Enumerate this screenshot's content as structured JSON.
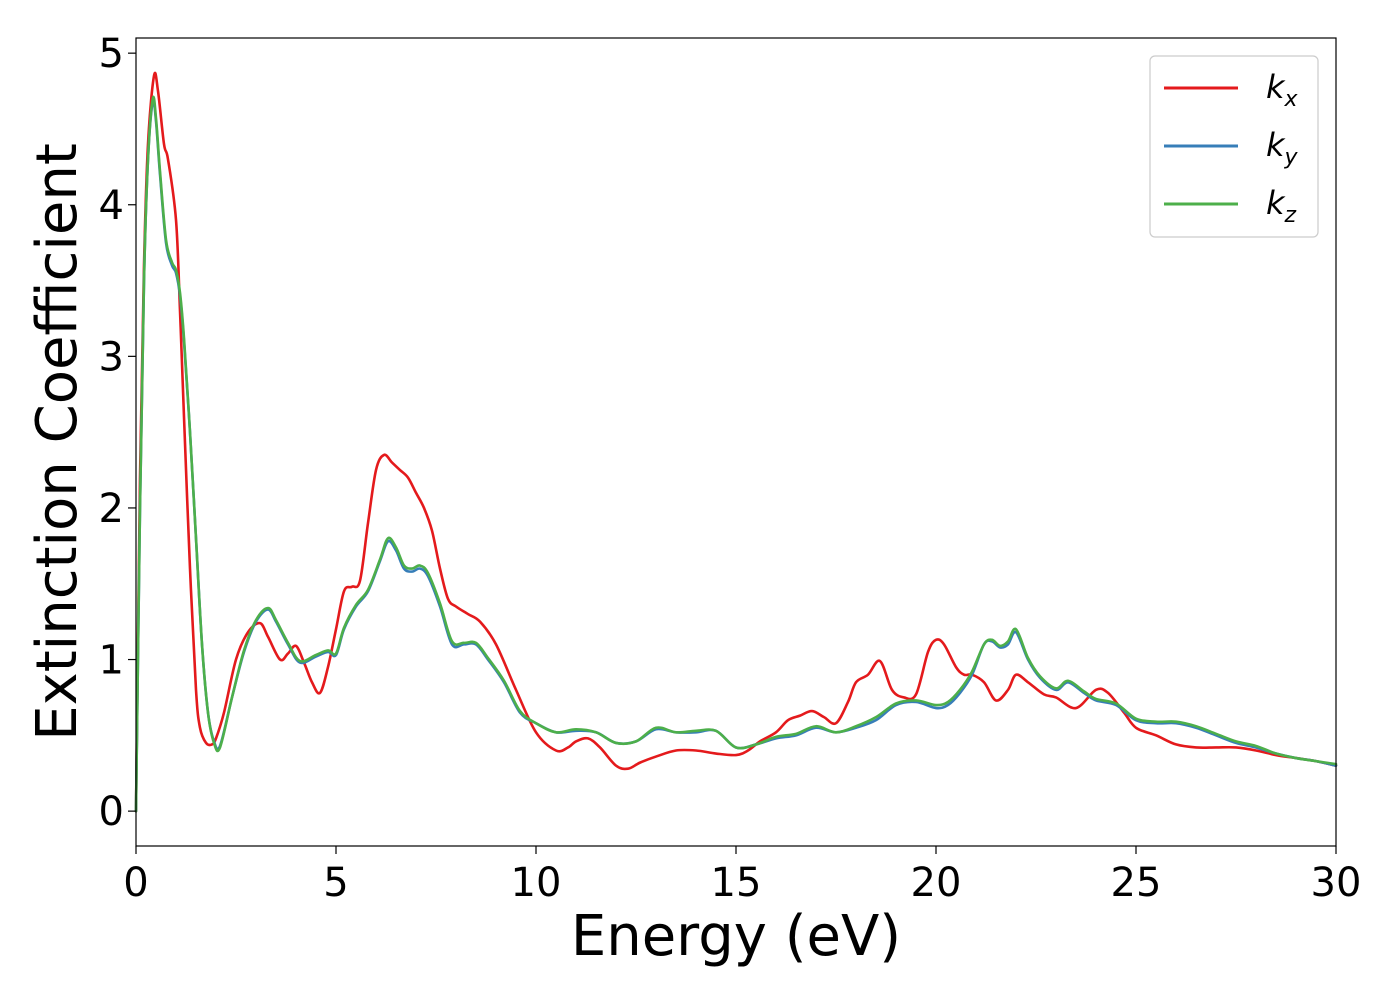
{
  "chart_data": {
    "type": "line",
    "xlabel": "Energy (eV)",
    "ylabel": "Extinction Coefficient",
    "xlim": [
      0,
      30
    ],
    "ylim": [
      -0.23,
      5.1
    ],
    "xticks": [
      "0",
      "5",
      "10",
      "15",
      "20",
      "25",
      "30"
    ],
    "yticks": [
      "0",
      "1",
      "2",
      "3",
      "4",
      "5"
    ],
    "grid": false,
    "legend_position": "top-right",
    "series": [
      {
        "name": "k",
        "subscript": "x",
        "color": "#e41a1c",
        "x": [
          0,
          0.1,
          0.2,
          0.3,
          0.45,
          0.55,
          0.7,
          0.8,
          1.0,
          1.1,
          1.2,
          1.35,
          1.5,
          1.6,
          1.75,
          1.9,
          2.0,
          2.2,
          2.5,
          2.8,
          3.1,
          3.3,
          3.6,
          3.8,
          4.0,
          4.2,
          4.4,
          4.6,
          4.8,
          5.0,
          5.2,
          5.4,
          5.6,
          5.8,
          6.0,
          6.2,
          6.4,
          6.6,
          6.8,
          7.0,
          7.2,
          7.4,
          7.6,
          7.8,
          8.0,
          8.3,
          8.6,
          9.0,
          9.5,
          10.0,
          10.5,
          10.8,
          11.0,
          11.3,
          11.6,
          12.0,
          12.3,
          12.6,
          13.0,
          13.5,
          14.0,
          14.5,
          15.0,
          15.3,
          15.6,
          16.0,
          16.3,
          16.6,
          16.9,
          17.2,
          17.5,
          17.8,
          18.0,
          18.3,
          18.6,
          18.9,
          19.2,
          19.5,
          19.8,
          20.0,
          20.2,
          20.5,
          20.7,
          20.9,
          21.2,
          21.5,
          21.8,
          22.0,
          22.3,
          22.7,
          23.0,
          23.5,
          24.0,
          24.3,
          24.7,
          25.0,
          25.5,
          26.0,
          26.5,
          27.0,
          27.5,
          28.0,
          28.5,
          29.0,
          29.5,
          30.0
        ],
        "values": [
          0.0,
          2.2,
          3.6,
          4.4,
          4.85,
          4.75,
          4.4,
          4.3,
          3.9,
          3.3,
          2.6,
          1.6,
          0.8,
          0.55,
          0.45,
          0.44,
          0.48,
          0.65,
          1.0,
          1.18,
          1.24,
          1.15,
          1.0,
          1.04,
          1.09,
          0.98,
          0.85,
          0.78,
          0.95,
          1.2,
          1.45,
          1.48,
          1.52,
          1.9,
          2.25,
          2.35,
          2.3,
          2.25,
          2.2,
          2.1,
          2.0,
          1.85,
          1.6,
          1.4,
          1.35,
          1.3,
          1.25,
          1.1,
          0.8,
          0.52,
          0.4,
          0.42,
          0.46,
          0.48,
          0.42,
          0.3,
          0.28,
          0.32,
          0.36,
          0.4,
          0.4,
          0.38,
          0.37,
          0.4,
          0.46,
          0.52,
          0.6,
          0.63,
          0.66,
          0.62,
          0.58,
          0.72,
          0.85,
          0.9,
          0.99,
          0.8,
          0.75,
          0.77,
          1.05,
          1.13,
          1.1,
          0.95,
          0.9,
          0.9,
          0.85,
          0.73,
          0.8,
          0.9,
          0.85,
          0.77,
          0.75,
          0.68,
          0.8,
          0.78,
          0.65,
          0.55,
          0.5,
          0.44,
          0.42,
          0.42,
          0.42,
          0.4,
          0.37,
          0.35,
          0.33,
          0.3
        ]
      },
      {
        "name": "k",
        "subscript": "y",
        "color": "#377eb8",
        "x": [
          0,
          0.1,
          0.2,
          0.3,
          0.42,
          0.5,
          0.6,
          0.75,
          0.9,
          1.0,
          1.1,
          1.2,
          1.35,
          1.5,
          1.65,
          1.8,
          1.95,
          2.1,
          2.4,
          2.7,
          3.0,
          3.3,
          3.5,
          3.8,
          4.1,
          4.5,
          4.8,
          5.0,
          5.2,
          5.5,
          5.8,
          6.1,
          6.3,
          6.5,
          6.7,
          6.9,
          7.1,
          7.3,
          7.6,
          7.9,
          8.2,
          8.5,
          8.8,
          9.2,
          9.6,
          10.0,
          10.5,
          11.0,
          11.5,
          12.0,
          12.5,
          13.0,
          13.5,
          14.0,
          14.5,
          15.0,
          15.5,
          16.0,
          16.5,
          17.0,
          17.5,
          18.0,
          18.5,
          19.0,
          19.5,
          20.0,
          20.3,
          20.6,
          20.9,
          21.2,
          21.4,
          21.6,
          21.8,
          22.0,
          22.3,
          22.6,
          23.0,
          23.3,
          23.7,
          24.0,
          24.5,
          25.0,
          25.5,
          26.0,
          26.5,
          27.0,
          27.5,
          28.0,
          28.5,
          29.0,
          29.5,
          30.0
        ],
        "values": [
          0.0,
          2.0,
          3.5,
          4.3,
          4.68,
          4.55,
          4.2,
          3.75,
          3.6,
          3.55,
          3.4,
          3.1,
          2.5,
          1.8,
          1.1,
          0.65,
          0.46,
          0.43,
          0.75,
          1.05,
          1.25,
          1.33,
          1.25,
          1.1,
          0.98,
          1.02,
          1.05,
          1.03,
          1.2,
          1.35,
          1.45,
          1.65,
          1.78,
          1.72,
          1.6,
          1.58,
          1.6,
          1.55,
          1.35,
          1.1,
          1.1,
          1.1,
          1.0,
          0.85,
          0.65,
          0.58,
          0.52,
          0.53,
          0.52,
          0.45,
          0.46,
          0.54,
          0.52,
          0.52,
          0.53,
          0.42,
          0.44,
          0.48,
          0.5,
          0.55,
          0.52,
          0.55,
          0.6,
          0.7,
          0.72,
          0.68,
          0.7,
          0.78,
          0.9,
          1.1,
          1.12,
          1.08,
          1.1,
          1.18,
          1.0,
          0.88,
          0.8,
          0.85,
          0.78,
          0.73,
          0.7,
          0.6,
          0.58,
          0.58,
          0.55,
          0.5,
          0.45,
          0.42,
          0.38,
          0.35,
          0.33,
          0.3
        ]
      },
      {
        "name": "k",
        "subscript": "z",
        "color": "#4daf4a",
        "x": [
          0,
          0.1,
          0.2,
          0.3,
          0.42,
          0.5,
          0.6,
          0.75,
          0.9,
          1.0,
          1.1,
          1.2,
          1.35,
          1.5,
          1.65,
          1.8,
          1.95,
          2.1,
          2.4,
          2.7,
          3.0,
          3.3,
          3.5,
          3.8,
          4.1,
          4.5,
          4.8,
          5.0,
          5.2,
          5.5,
          5.8,
          6.1,
          6.3,
          6.5,
          6.7,
          6.9,
          7.1,
          7.3,
          7.6,
          7.9,
          8.2,
          8.5,
          8.8,
          9.2,
          9.6,
          10.0,
          10.5,
          11.0,
          11.5,
          12.0,
          12.5,
          13.0,
          13.5,
          14.0,
          14.5,
          15.0,
          15.5,
          16.0,
          16.5,
          17.0,
          17.5,
          18.0,
          18.5,
          19.0,
          19.5,
          20.0,
          20.3,
          20.6,
          20.9,
          21.2,
          21.4,
          21.6,
          21.8,
          22.0,
          22.3,
          22.6,
          23.0,
          23.3,
          23.7,
          24.0,
          24.5,
          25.0,
          25.5,
          26.0,
          26.5,
          27.0,
          27.5,
          28.0,
          28.5,
          29.0,
          29.5,
          30.0
        ],
        "values": [
          0.0,
          2.0,
          3.5,
          4.3,
          4.7,
          4.57,
          4.22,
          3.77,
          3.62,
          3.57,
          3.42,
          3.12,
          2.5,
          1.8,
          1.1,
          0.65,
          0.45,
          0.42,
          0.75,
          1.06,
          1.26,
          1.34,
          1.26,
          1.11,
          0.99,
          1.03,
          1.06,
          1.04,
          1.21,
          1.36,
          1.46,
          1.66,
          1.8,
          1.74,
          1.62,
          1.6,
          1.62,
          1.57,
          1.37,
          1.12,
          1.11,
          1.11,
          1.01,
          0.86,
          0.66,
          0.58,
          0.52,
          0.54,
          0.52,
          0.45,
          0.46,
          0.55,
          0.52,
          0.53,
          0.53,
          0.42,
          0.44,
          0.49,
          0.51,
          0.56,
          0.52,
          0.56,
          0.62,
          0.71,
          0.73,
          0.7,
          0.72,
          0.8,
          0.92,
          1.1,
          1.13,
          1.09,
          1.12,
          1.2,
          1.01,
          0.89,
          0.81,
          0.86,
          0.79,
          0.74,
          0.71,
          0.61,
          0.59,
          0.59,
          0.56,
          0.51,
          0.46,
          0.43,
          0.38,
          0.35,
          0.33,
          0.31
        ]
      }
    ]
  }
}
